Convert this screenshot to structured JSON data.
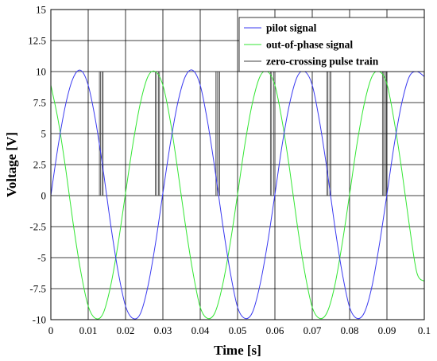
{
  "chart_data": {
    "type": "line",
    "xlabel": "Time [s]",
    "ylabel": "Voltage [V]",
    "xlim": [
      0,
      0.1
    ],
    "ylim": [
      -10,
      15
    ],
    "x_ticks": [
      0,
      0.01,
      0.02,
      0.03,
      0.04,
      0.05,
      0.06,
      0.07,
      0.08,
      0.09,
      0.1
    ],
    "x_tick_labels": [
      "0",
      "0.01",
      "0.02",
      "0.03",
      "0.04",
      "0.05",
      "0.06",
      "0.07",
      "0.08",
      "0.09",
      "0.1"
    ],
    "y_ticks": [
      -10,
      -7.5,
      -5,
      -2.5,
      0,
      2.5,
      5,
      7.5,
      10,
      12.5,
      15
    ],
    "y_tick_labels": [
      "-10",
      "-7.5",
      "-5",
      "-2.5",
      "0",
      "2.5",
      "5",
      "7.5",
      "10",
      "12.5",
      "15"
    ],
    "grid": true,
    "legend_position": "top-right",
    "series": [
      {
        "name": "pilot signal",
        "color": "#3a3af0",
        "x": [
          0,
          0.002,
          0.004,
          0.006,
          0.008,
          0.01,
          0.012,
          0.014,
          0.016,
          0.018,
          0.02,
          0.022,
          0.024,
          0.026,
          0.028,
          0.03,
          0.032,
          0.034,
          0.036,
          0.038,
          0.04,
          0.042,
          0.044,
          0.046,
          0.048,
          0.05,
          0.052,
          0.054,
          0.056,
          0.058,
          0.06,
          0.062,
          0.064,
          0.066,
          0.068,
          0.07,
          0.072,
          0.074,
          0.076,
          0.078,
          0.08,
          0.082,
          0.084,
          0.086,
          0.088,
          0.09,
          0.092,
          0.094,
          0.096,
          0.098,
          0.1
        ],
        "y": [
          0,
          4.1,
          7.4,
          9.5,
          10.1,
          8.9,
          6.0,
          2.1,
          -2.3,
          -6.1,
          -8.9,
          -9.9,
          -9.5,
          -7.3,
          -3.9,
          0.2,
          4.2,
          7.5,
          9.6,
          10.1,
          8.9,
          5.9,
          2.0,
          -2.3,
          -6.1,
          -9.0,
          -9.9,
          -9.4,
          -7.2,
          -3.9,
          0.1,
          4.2,
          7.5,
          9.6,
          10.0,
          8.9,
          5.9,
          2.0,
          -2.4,
          -6.2,
          -9.0,
          -9.9,
          -9.4,
          -7.3,
          -3.9,
          0.1,
          4.2,
          7.5,
          9.6,
          10.0,
          9.6
        ]
      },
      {
        "name": "out-of-phase signal",
        "color": "#33e633",
        "x": [
          0,
          0.002,
          0.004,
          0.006,
          0.008,
          0.01,
          0.012,
          0.014,
          0.016,
          0.018,
          0.02,
          0.022,
          0.024,
          0.026,
          0.028,
          0.03,
          0.032,
          0.034,
          0.036,
          0.038,
          0.04,
          0.042,
          0.044,
          0.046,
          0.048,
          0.05,
          0.052,
          0.054,
          0.056,
          0.058,
          0.06,
          0.062,
          0.064,
          0.066,
          0.068,
          0.07,
          0.072,
          0.074,
          0.076,
          0.078,
          0.08,
          0.082,
          0.084,
          0.086,
          0.088,
          0.09,
          0.092,
          0.094,
          0.096,
          0.098,
          0.1
        ],
        "y": [
          8.9,
          6.0,
          2.1,
          -2.3,
          -6.1,
          -8.9,
          -9.9,
          -9.5,
          -7.3,
          -3.9,
          0.2,
          4.2,
          7.5,
          9.6,
          10.0,
          8.9,
          6.0,
          2.0,
          -2.3,
          -6.1,
          -9.0,
          -9.9,
          -9.4,
          -7.2,
          -3.9,
          0.1,
          4.2,
          7.5,
          9.6,
          10.0,
          8.9,
          5.9,
          2.0,
          -2.4,
          -6.2,
          -9.0,
          -9.9,
          -9.4,
          -7.3,
          -3.9,
          0.1,
          4.2,
          7.5,
          9.6,
          10.0,
          9.0,
          5.9,
          2.0,
          -2.4,
          -6.2,
          -6.9
        ]
      },
      {
        "name": "zero-crossing pulse train",
        "color": "#404040",
        "pulses": [
          [
            0.013,
            0.0133
          ],
          [
            0.0137,
            0.014
          ],
          [
            0.028,
            0.0283
          ],
          [
            0.0288,
            0.0291
          ],
          [
            0.0442,
            0.0445
          ],
          [
            0.0449,
            0.0452
          ],
          [
            0.0588,
            0.0591
          ],
          [
            0.0597,
            0.06
          ],
          [
            0.0739,
            0.0742
          ],
          [
            0.0747,
            0.075
          ],
          [
            0.0888,
            0.0891
          ],
          [
            0.0895,
            0.0898
          ]
        ],
        "high": 10,
        "low": 0
      }
    ]
  }
}
